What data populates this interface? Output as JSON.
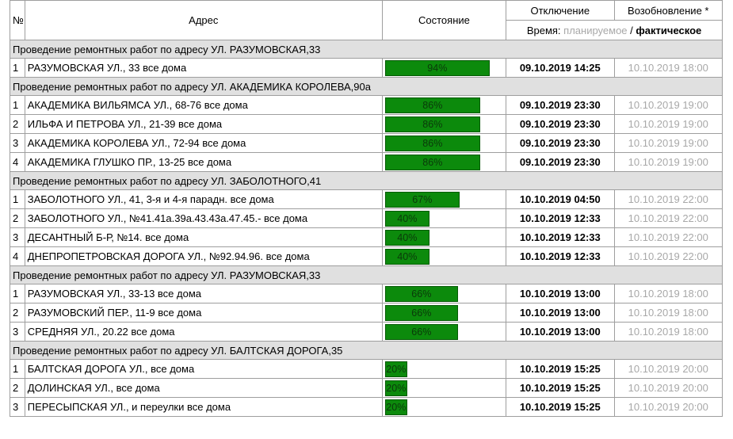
{
  "header": {
    "num": "№",
    "address": "Адрес",
    "state": "Состояние",
    "shutoff": "Отключение",
    "restore": "Возобновление *",
    "time_prefix": "Время:",
    "time_planned": "планируемое",
    "time_sep": "/",
    "time_actual": "фактическое"
  },
  "colors": {
    "progress_fill": "#0c8a0c",
    "group_background": "#e0e0e0",
    "planned_text": "#a8a8a8"
  },
  "groups": [
    {
      "title": "Проведение ремонтных работ по адресу УЛ. РАЗУМОВСКАЯ,33",
      "rows": [
        {
          "num": "1",
          "address": "РАЗУМОВСКАЯ УЛ., 33 все дома",
          "progress": 94,
          "progress_label": "94%",
          "shutoff": "09.10.2019 14:25",
          "restore": "10.10.2019 18:00"
        }
      ]
    },
    {
      "title": "Проведение ремонтных работ по адресу УЛ. АКАДЕМИКА КОРОЛЕВА,90а",
      "rows": [
        {
          "num": "1",
          "address": "АКАДЕМИКА ВИЛЬЯМСА УЛ., 68-76 все дома",
          "progress": 86,
          "progress_label": "86%",
          "shutoff": "09.10.2019 23:30",
          "restore": "10.10.2019 19:00"
        },
        {
          "num": "2",
          "address": "ИЛЬФА И ПЕТРОВА УЛ., 21-39 все дома",
          "progress": 86,
          "progress_label": "86%",
          "shutoff": "09.10.2019 23:30",
          "restore": "10.10.2019 19:00"
        },
        {
          "num": "3",
          "address": "АКАДЕМИКА КОРОЛЕВА УЛ., 72-94 все дома",
          "progress": 86,
          "progress_label": "86%",
          "shutoff": "09.10.2019 23:30",
          "restore": "10.10.2019 19:00"
        },
        {
          "num": "4",
          "address": "АКАДЕМИКА ГЛУШКО ПР., 13-25 все дома",
          "progress": 86,
          "progress_label": "86%",
          "shutoff": "09.10.2019 23:30",
          "restore": "10.10.2019 19:00"
        }
      ]
    },
    {
      "title": "Проведение ремонтных работ по адресу УЛ. ЗАБОЛОТНОГО,41",
      "rows": [
        {
          "num": "1",
          "address": "ЗАБОЛОТНОГО УЛ., 41, 3-я и 4-я парадн. все дома",
          "progress": 67,
          "progress_label": "67%",
          "shutoff": "10.10.2019 04:50",
          "restore": "10.10.2019 22:00"
        },
        {
          "num": "2",
          "address": "ЗАБОЛОТНОГО УЛ., №41.41а.39а.43.43а.47.45.- все дома",
          "progress": 40,
          "progress_label": "40%",
          "shutoff": "10.10.2019 12:33",
          "restore": "10.10.2019 22:00"
        },
        {
          "num": "3",
          "address": "ДЕСАНТНЫЙ Б-Р, №14. все дома",
          "progress": 40,
          "progress_label": "40%",
          "shutoff": "10.10.2019 12:33",
          "restore": "10.10.2019 22:00"
        },
        {
          "num": "4",
          "address": "ДНЕПРОПЕТРОВСКАЯ ДОРОГА УЛ., №92.94.96. все дома",
          "progress": 40,
          "progress_label": "40%",
          "shutoff": "10.10.2019 12:33",
          "restore": "10.10.2019 22:00"
        }
      ]
    },
    {
      "title": "Проведение ремонтных работ по адресу УЛ. РАЗУМОВСКАЯ,33",
      "rows": [
        {
          "num": "1",
          "address": "РАЗУМОВСКАЯ УЛ., 33-13 все дома",
          "progress": 66,
          "progress_label": "66%",
          "shutoff": "10.10.2019 13:00",
          "restore": "10.10.2019 18:00"
        },
        {
          "num": "2",
          "address": "РАЗУМОВСКИЙ ПЕР., 11-9 все дома",
          "progress": 66,
          "progress_label": "66%",
          "shutoff": "10.10.2019 13:00",
          "restore": "10.10.2019 18:00"
        },
        {
          "num": "3",
          "address": "СРЕДНЯЯ УЛ., 20.22 все дома",
          "progress": 66,
          "progress_label": "66%",
          "shutoff": "10.10.2019 13:00",
          "restore": "10.10.2019 18:00"
        }
      ]
    },
    {
      "title": "Проведение ремонтных работ по адресу УЛ. БАЛТСКАЯ ДОРОГА,35",
      "rows": [
        {
          "num": "1",
          "address": "БАЛТСКАЯ ДОРОГА УЛ., все дома",
          "progress": 20,
          "progress_label": "20%",
          "shutoff": "10.10.2019 15:25",
          "restore": "10.10.2019 20:00"
        },
        {
          "num": "2",
          "address": "ДОЛИНСКАЯ УЛ., все дома",
          "progress": 20,
          "progress_label": "20%",
          "shutoff": "10.10.2019 15:25",
          "restore": "10.10.2019 20:00"
        },
        {
          "num": "3",
          "address": "ПЕРЕСЫПСКАЯ УЛ., и переулки все дома",
          "progress": 20,
          "progress_label": "20%",
          "shutoff": "10.10.2019 15:25",
          "restore": "10.10.2019 20:00"
        }
      ]
    }
  ]
}
